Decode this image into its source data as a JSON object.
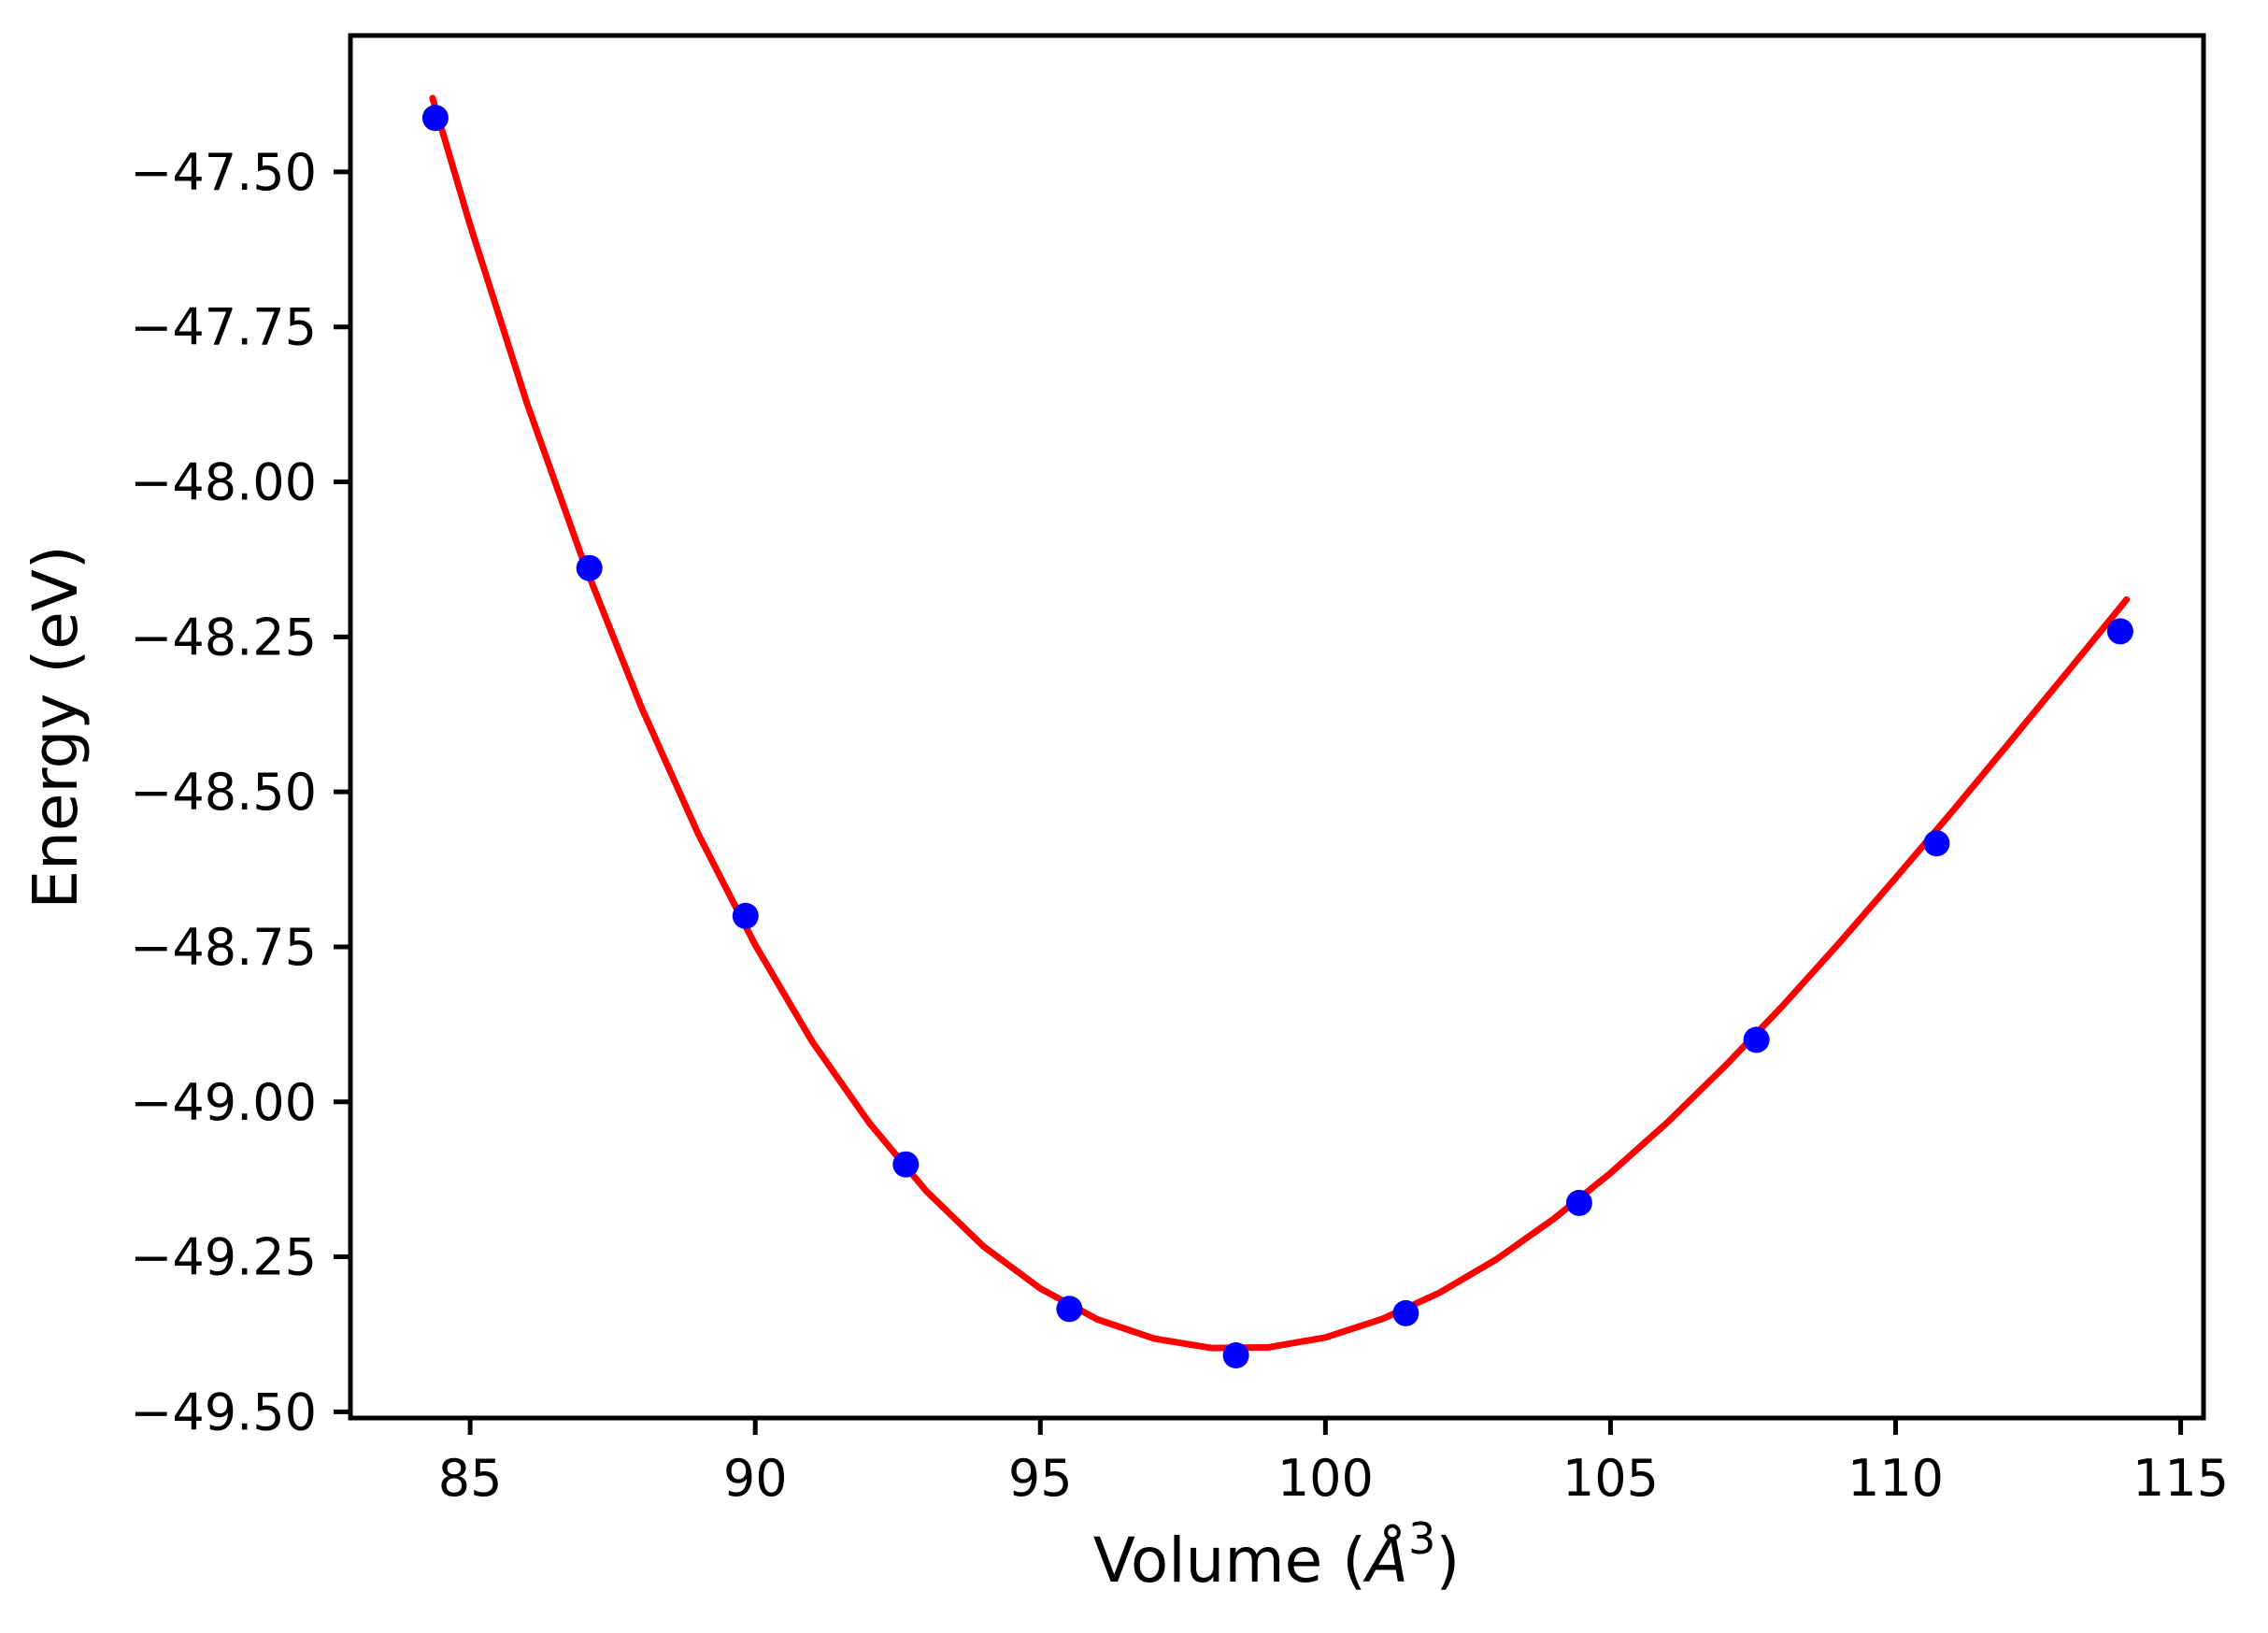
{
  "chart_data": {
    "type": "scatter",
    "title": "",
    "xlabel": {
      "text": "Volume (Å³)",
      "prefix": "Volume (",
      "symbol": "Å",
      "superscript": "3",
      "suffix": ")"
    },
    "ylabel": "Energy (eV)",
    "xlim": [
      82.9,
      115.4
    ],
    "ylim": [
      -49.51,
      -47.28
    ],
    "grid": false,
    "legend": "none",
    "xticks": {
      "values": [
        85,
        90,
        95,
        100,
        105,
        110,
        115
      ],
      "labels": [
        "85",
        "90",
        "95",
        "100",
        "105",
        "110",
        "115"
      ]
    },
    "yticks": {
      "values": [
        -47.5,
        -47.75,
        -48.0,
        -48.25,
        -48.5,
        -48.75,
        -49.0,
        -49.25,
        -49.5
      ],
      "labels": [
        "−47.50",
        "−47.75",
        "−48.00",
        "−48.25",
        "−48.50",
        "−48.75",
        "−49.00",
        "−49.25",
        "−49.50"
      ]
    },
    "series": [
      {
        "name": "eos-fit-curve",
        "type": "line",
        "color": "#ff0000",
        "line_width": 7,
        "x": [
          84.34,
          85,
          86,
          87,
          88,
          89,
          90,
          91,
          92,
          93,
          94,
          95,
          96,
          97,
          98,
          99,
          100,
          101,
          102,
          103,
          104,
          105,
          106,
          107,
          108,
          109,
          110,
          111,
          112,
          113,
          114.05
        ],
        "y": [
          -47.381,
          -47.586,
          -47.874,
          -48.132,
          -48.363,
          -48.568,
          -48.747,
          -48.903,
          -49.034,
          -49.144,
          -49.233,
          -49.301,
          -49.351,
          -49.382,
          -49.397,
          -49.396,
          -49.38,
          -49.35,
          -49.308,
          -49.254,
          -49.189,
          -49.115,
          -49.033,
          -48.943,
          -48.847,
          -48.745,
          -48.639,
          -48.531,
          -48.42,
          -48.308,
          -48.19
        ]
      },
      {
        "name": "calculated-energies",
        "type": "scatter",
        "color": "#0000ff",
        "marker_radius": 14,
        "x": [
          84.39,
          87.09,
          89.83,
          92.64,
          95.51,
          98.43,
          101.41,
          104.45,
          107.56,
          110.72,
          113.94
        ],
        "y": [
          -47.413,
          -48.139,
          -48.7,
          -49.101,
          -49.334,
          -49.409,
          -49.341,
          -49.163,
          -48.9,
          -48.583,
          -48.241
        ]
      }
    ]
  }
}
